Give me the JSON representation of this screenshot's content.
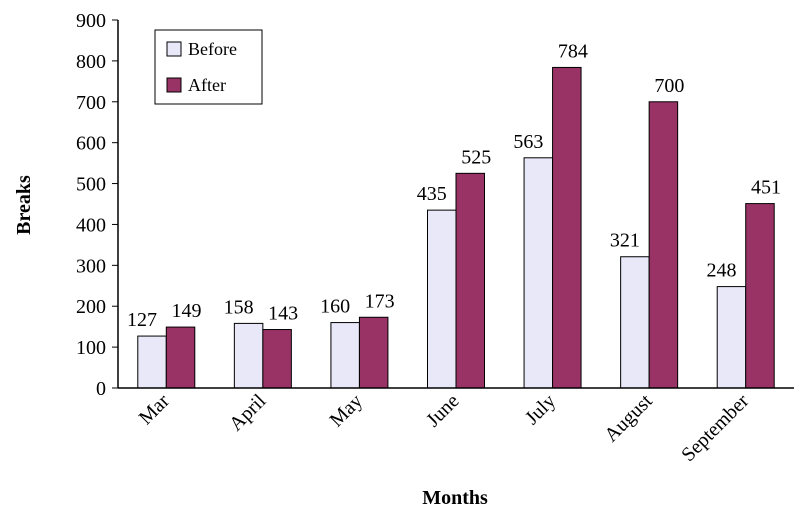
{
  "chart_data": {
    "type": "bar",
    "x_label": "Months",
    "y_label": "Breaks",
    "categories": [
      "Mar",
      "April",
      "May",
      "June",
      "July",
      "August",
      "September"
    ],
    "series": [
      {
        "name": "Before",
        "color": "#e8e8f8",
        "values": [
          127,
          158,
          160,
          435,
          563,
          321,
          248
        ]
      },
      {
        "name": "After",
        "color": "#993366",
        "values": [
          149,
          143,
          173,
          525,
          784,
          700,
          451
        ]
      }
    ],
    "ylim": [
      0,
      900
    ],
    "yticks": [
      0,
      100,
      200,
      300,
      400,
      500,
      600,
      700,
      800,
      900
    ],
    "legend": "upper left"
  }
}
